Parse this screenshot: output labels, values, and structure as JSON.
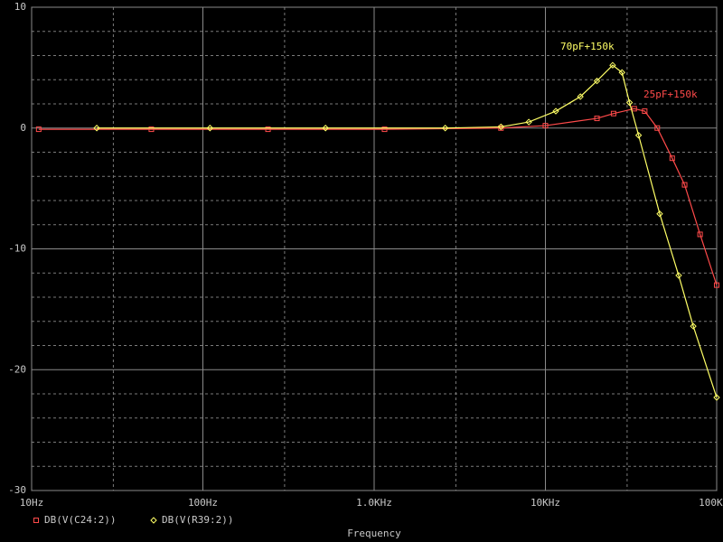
{
  "chart_data": {
    "type": "line",
    "xlabel": "Frequency",
    "xscale": "log",
    "xlim": [
      10,
      100000
    ],
    "xticks": [
      {
        "value": 10,
        "label": "10Hz"
      },
      {
        "value": 100,
        "label": "100Hz"
      },
      {
        "value": 1000,
        "label": "1.0KHz"
      },
      {
        "value": 10000,
        "label": "10KHz"
      },
      {
        "value": 100000,
        "label": "100KHz"
      }
    ],
    "x_minor_grid": [
      30,
      300,
      3000,
      30000
    ],
    "ylim": [
      -30,
      10
    ],
    "yticks": [
      10,
      0,
      -10,
      -20,
      -30
    ],
    "y_minor_grid": [
      8,
      6,
      4,
      2,
      -2,
      -4,
      -6,
      -8,
      -12,
      -14,
      -16,
      -18,
      -22,
      -24,
      -26,
      -28
    ],
    "grid": true,
    "series": [
      {
        "name": "DB(V(C24:2))",
        "color": "#ff4a4a",
        "marker": "square",
        "x": [
          11,
          50,
          240,
          1150,
          5500,
          10000,
          20000,
          25000,
          33000,
          38000,
          45000,
          55000,
          65000,
          80000,
          100000
        ],
        "values": [
          -0.1,
          -0.1,
          -0.1,
          -0.1,
          0,
          0.2,
          0.8,
          1.2,
          1.6,
          1.4,
          0,
          -2.5,
          -4.7,
          -8.8,
          -13
        ]
      },
      {
        "name": "DB(V(R39:2))",
        "color": "#ffff66",
        "marker": "diamond",
        "x": [
          24,
          110,
          520,
          2600,
          5500,
          8000,
          11500,
          16000,
          20000,
          24700,
          28000,
          31000,
          35000,
          46500,
          60000,
          73000,
          100000
        ],
        "values": [
          0,
          0,
          0,
          0,
          0.1,
          0.5,
          1.4,
          2.6,
          3.9,
          5.2,
          4.6,
          2.1,
          -0.6,
          -7.1,
          -12.2,
          -16.4,
          -22.3
        ]
      }
    ],
    "annotations": [
      "70pF+150k",
      "25pF+150k"
    ]
  }
}
